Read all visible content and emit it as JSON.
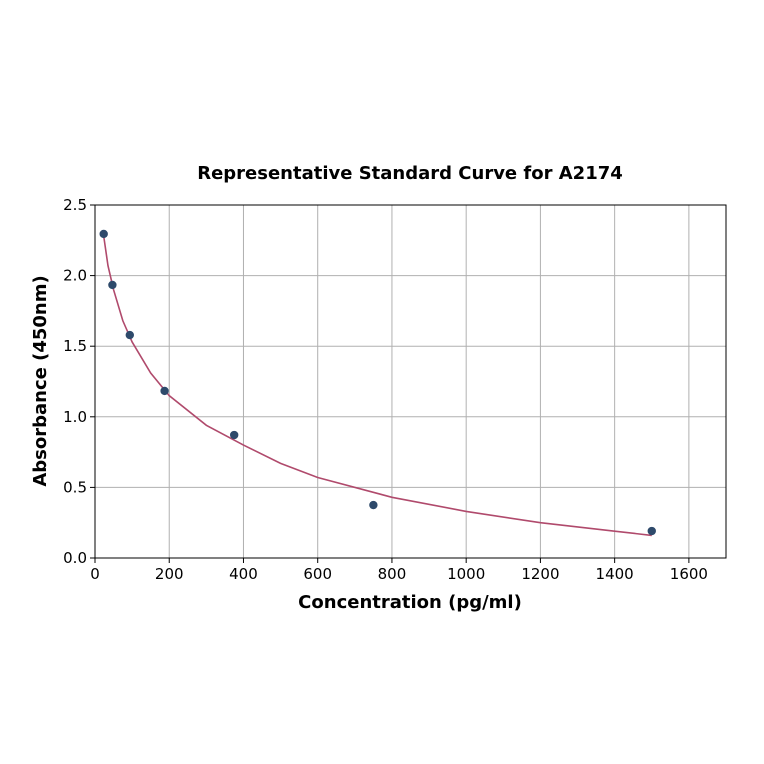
{
  "chart_data": {
    "type": "scatter",
    "title": "Representative Standard Curve for A2174",
    "xlabel": "Concentration (pg/ml)",
    "ylabel": "Absorbance (450nm)",
    "xlim": [
      0,
      1700
    ],
    "ylim": [
      0,
      2.5
    ],
    "xticks": [
      0,
      200,
      400,
      600,
      800,
      1000,
      1200,
      1400,
      1600
    ],
    "yticks": [
      0.0,
      0.5,
      1.0,
      1.5,
      2.0,
      2.5
    ],
    "xtick_labels": [
      "0",
      "200",
      "400",
      "600",
      "800",
      "1000",
      "1200",
      "1400",
      "1600"
    ],
    "ytick_labels": [
      "0.0",
      "0.5",
      "1.0",
      "1.5",
      "2.0",
      "2.5"
    ],
    "grid": true,
    "points": {
      "x": [
        23.44,
        46.88,
        93.75,
        187.5,
        375,
        750,
        1500
      ],
      "y": [
        2.295,
        1.934,
        1.579,
        1.183,
        0.871,
        0.375,
        0.191
      ],
      "color": "#2e4a6b"
    },
    "fit_curve": {
      "x": [
        23.44,
        35,
        50,
        75,
        100,
        150,
        200,
        300,
        400,
        500,
        600,
        800,
        1000,
        1200,
        1400,
        1500
      ],
      "y": [
        2.28,
        2.07,
        1.9,
        1.68,
        1.53,
        1.31,
        1.15,
        0.94,
        0.8,
        0.67,
        0.57,
        0.43,
        0.33,
        0.25,
        0.19,
        0.16
      ],
      "color": "#b04a6c"
    }
  }
}
